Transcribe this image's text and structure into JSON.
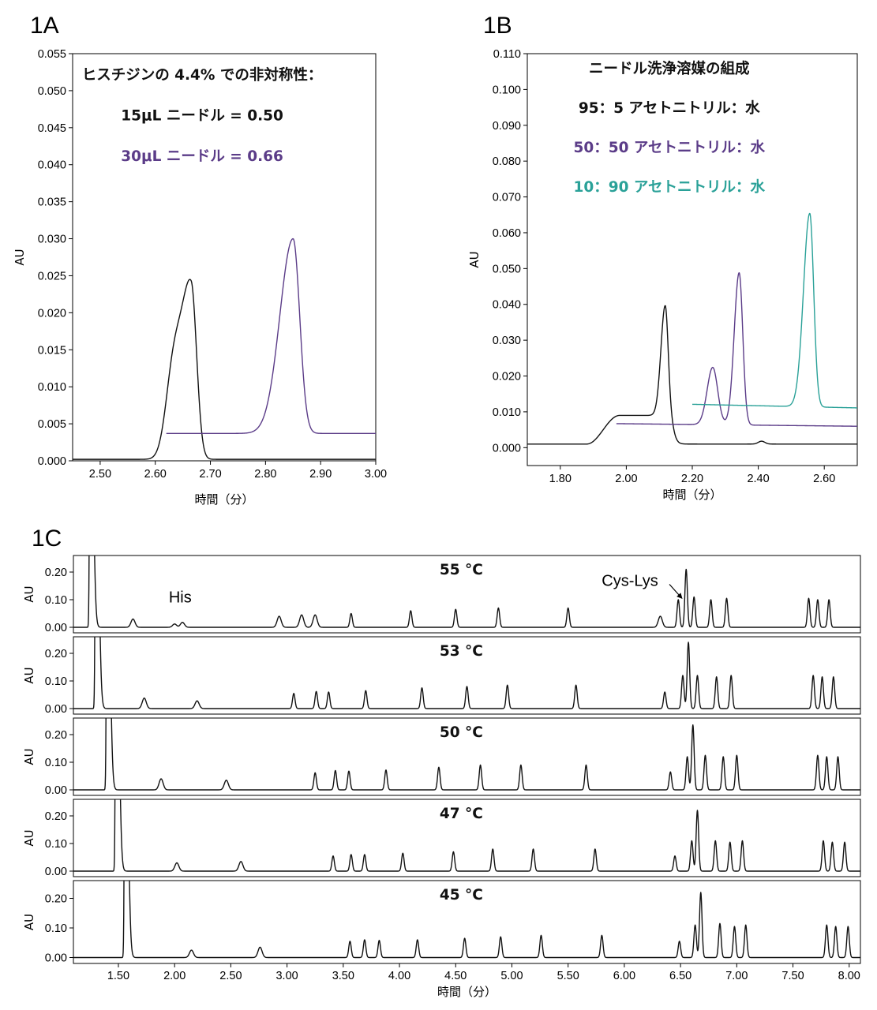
{
  "colors": {
    "black": "#111111",
    "purple": "#5b3c88",
    "teal": "#2aa198"
  },
  "chart_data": [
    {
      "id": "1A",
      "panel_label": "1A",
      "type": "line",
      "xlabel": "時間（分）",
      "ylabel": "AU",
      "xlim": [
        2.45,
        3.0
      ],
      "ylim": [
        0.0,
        0.055
      ],
      "xticks": [
        2.5,
        2.6,
        2.7,
        2.8,
        2.9,
        3.0
      ],
      "yticks": [
        0.0,
        0.005,
        0.01,
        0.015,
        0.02,
        0.025,
        0.03,
        0.035,
        0.04,
        0.045,
        0.05,
        0.055
      ],
      "x_decimals": 2,
      "y_decimals": 3,
      "annotations": [
        {
          "text": "ヒスチジンの 4.4% での非対称性：",
          "color": "#111111",
          "x": 2.685,
          "y": 0.0515
        },
        {
          "text": "15μL ニードル = 0.50",
          "color": "#111111",
          "x": 2.685,
          "y": 0.046
        },
        {
          "text": "30μL ニードル = 0.66",
          "color": "#5b3c88",
          "x": 2.685,
          "y": 0.0405
        }
      ],
      "series": [
        {
          "label": "15μL ニードル",
          "color": "#111111",
          "x_start": 2.45,
          "x_end": 3.0,
          "baseline": 0.0002,
          "peaks": [
            {
              "center": 2.665,
              "height": 0.0233,
              "width_left": 0.017,
              "width_right": 0.01
            },
            {
              "center": 2.633,
              "height": 0.0115,
              "width_left": 0.014,
              "width_right": 0.014
            }
          ]
        },
        {
          "label": "30μL ニードル",
          "color": "#5b3c88",
          "x_start": 2.62,
          "x_end": 3.0,
          "baseline": 0.0037,
          "peaks": [
            {
              "center": 2.85,
              "height": 0.0263,
              "width_left": 0.024,
              "width_right": 0.012
            }
          ]
        }
      ]
    },
    {
      "id": "1B",
      "panel_label": "1B",
      "type": "line",
      "xlabel": "時間（分）",
      "ylabel": "AU",
      "xlim": [
        1.7,
        2.7
      ],
      "ylim": [
        -0.005,
        0.11
      ],
      "xticks": [
        1.8,
        2.0,
        2.2,
        2.4,
        2.6
      ],
      "yticks": [
        0.0,
        0.01,
        0.02,
        0.03,
        0.04,
        0.05,
        0.06,
        0.07,
        0.08,
        0.09,
        0.1,
        0.11
      ],
      "x_decimals": 2,
      "y_decimals": 3,
      "annotations": [
        {
          "text": "ニードル洗浄溶媒の組成",
          "color": "#111111",
          "x": 2.13,
          "y": 0.1045
        },
        {
          "text": "95：5 アセトニトリル：水",
          "color": "#111111",
          "x": 2.13,
          "y": 0.0935
        },
        {
          "text": "50：50 アセトニトリル：水",
          "color": "#5b3c88",
          "x": 2.13,
          "y": 0.0825
        },
        {
          "text": "10：90 アセトニトリル：水",
          "color": "#2aa198",
          "x": 2.13,
          "y": 0.0715
        }
      ],
      "series": [
        {
          "label": "95：5 アセトニトリル：水",
          "color": "#111111",
          "x_start": 1.7,
          "x_end": 2.7,
          "baseline": 0.001,
          "step": {
            "start": 1.88,
            "end": 1.98,
            "height": 0.008,
            "drop_center": 2.143,
            "drop_width": 0.006
          },
          "peaks": [
            {
              "center": 2.118,
              "height": 0.0308,
              "width_left": 0.013,
              "width_right": 0.009
            },
            {
              "center": 2.41,
              "height": 0.0008,
              "width_left": 0.01,
              "width_right": 0.01
            }
          ]
        },
        {
          "label": "50：50 アセトニトリル：水",
          "color": "#5b3c88",
          "x_start": 1.97,
          "x_end": 2.7,
          "baseline": 0.0067,
          "slope": -0.001,
          "peaks": [
            {
              "center": 2.342,
              "height": 0.0425,
              "width_left": 0.015,
              "width_right": 0.011
            },
            {
              "center": 2.262,
              "height": 0.016,
              "width_left": 0.017,
              "width_right": 0.015
            }
          ]
        },
        {
          "label": "10：90 アセトニトリル：水",
          "color": "#2aa198",
          "x_start": 2.2,
          "x_end": 2.7,
          "baseline": 0.0121,
          "slope": -0.002,
          "peaks": [
            {
              "center": 2.556,
              "height": 0.054,
              "width_left": 0.019,
              "width_right": 0.012
            }
          ]
        }
      ]
    },
    {
      "id": "1C",
      "panel_label": "1C",
      "type": "line",
      "xlabel": "時間（分）",
      "ylabel": "AU",
      "xlim": [
        1.1,
        8.1
      ],
      "ylim": [
        -0.02,
        0.26
      ],
      "xticks": [
        1.5,
        2.0,
        2.5,
        3.0,
        3.5,
        4.0,
        4.5,
        5.0,
        5.5,
        6.0,
        6.5,
        7.0,
        7.5,
        8.0
      ],
      "yticks": [
        0.0,
        0.1,
        0.2
      ],
      "x_decimals": 2,
      "y_decimals": 2,
      "named_peaks": [
        {
          "text": "His",
          "x": 2.05,
          "y": 0.09,
          "panel": 0
        },
        {
          "text": "Cys-Lys",
          "x": 6.05,
          "y": 0.15,
          "panel": 0,
          "arrow_to_x": 6.55,
          "arrow_to_y": 0.13
        }
      ],
      "panels": [
        {
          "temp_label": "55 °C",
          "solvent_front": 1.25,
          "peaks": [
            [
              1.63,
              0.03
            ],
            [
              2.0,
              0.012
            ],
            [
              2.07,
              0.018
            ],
            [
              2.93,
              0.04
            ],
            [
              3.13,
              0.045
            ],
            [
              3.25,
              0.045
            ],
            [
              3.57,
              0.05
            ],
            [
              4.1,
              0.06
            ],
            [
              4.5,
              0.065
            ],
            [
              4.88,
              0.07
            ],
            [
              5.5,
              0.07
            ],
            [
              6.32,
              0.04
            ],
            [
              6.48,
              0.1
            ],
            [
              6.55,
              0.21
            ],
            [
              6.62,
              0.11
            ],
            [
              6.77,
              0.1
            ],
            [
              6.91,
              0.105
            ],
            [
              7.64,
              0.105
            ],
            [
              7.72,
              0.1
            ],
            [
              7.82,
              0.1
            ]
          ]
        },
        {
          "temp_label": "53 °C",
          "solvent_front": 1.3,
          "peaks": [
            [
              1.73,
              0.038
            ],
            [
              2.2,
              0.028
            ],
            [
              3.06,
              0.055
            ],
            [
              3.26,
              0.062
            ],
            [
              3.37,
              0.06
            ],
            [
              3.7,
              0.065
            ],
            [
              4.2,
              0.075
            ],
            [
              4.6,
              0.08
            ],
            [
              4.96,
              0.085
            ],
            [
              5.57,
              0.085
            ],
            [
              6.36,
              0.06
            ],
            [
              6.52,
              0.12
            ],
            [
              6.57,
              0.24
            ],
            [
              6.65,
              0.12
            ],
            [
              6.82,
              0.115
            ],
            [
              6.95,
              0.12
            ],
            [
              7.68,
              0.12
            ],
            [
              7.76,
              0.115
            ],
            [
              7.86,
              0.115
            ]
          ]
        },
        {
          "temp_label": "50 °C",
          "solvent_front": 1.4,
          "peaks": [
            [
              1.88,
              0.04
            ],
            [
              2.46,
              0.035
            ],
            [
              3.25,
              0.062
            ],
            [
              3.43,
              0.07
            ],
            [
              3.55,
              0.068
            ],
            [
              3.88,
              0.072
            ],
            [
              4.35,
              0.082
            ],
            [
              4.72,
              0.09
            ],
            [
              5.08,
              0.09
            ],
            [
              5.66,
              0.09
            ],
            [
              6.41,
              0.065
            ],
            [
              6.56,
              0.12
            ],
            [
              6.61,
              0.235
            ],
            [
              6.72,
              0.125
            ],
            [
              6.88,
              0.12
            ],
            [
              7.0,
              0.125
            ],
            [
              7.72,
              0.125
            ],
            [
              7.8,
              0.12
            ],
            [
              7.9,
              0.12
            ]
          ]
        },
        {
          "temp_label": "47 °C",
          "solvent_front": 1.48,
          "peaks": [
            [
              2.02,
              0.03
            ],
            [
              2.59,
              0.035
            ],
            [
              3.41,
              0.055
            ],
            [
              3.57,
              0.06
            ],
            [
              3.69,
              0.06
            ],
            [
              4.03,
              0.065
            ],
            [
              4.48,
              0.07
            ],
            [
              4.83,
              0.08
            ],
            [
              5.19,
              0.08
            ],
            [
              5.74,
              0.08
            ],
            [
              6.45,
              0.055
            ],
            [
              6.6,
              0.11
            ],
            [
              6.65,
              0.22
            ],
            [
              6.81,
              0.11
            ],
            [
              6.94,
              0.105
            ],
            [
              7.05,
              0.11
            ],
            [
              7.77,
              0.11
            ],
            [
              7.85,
              0.105
            ],
            [
              7.96,
              0.105
            ]
          ]
        },
        {
          "temp_label": "45 °C",
          "solvent_front": 1.56,
          "peaks": [
            [
              2.15,
              0.025
            ],
            [
              2.76,
              0.035
            ],
            [
              3.56,
              0.055
            ],
            [
              3.69,
              0.06
            ],
            [
              3.82,
              0.058
            ],
            [
              4.16,
              0.06
            ],
            [
              4.58,
              0.065
            ],
            [
              4.9,
              0.07
            ],
            [
              5.26,
              0.075
            ],
            [
              5.8,
              0.075
            ],
            [
              6.49,
              0.055
            ],
            [
              6.63,
              0.11
            ],
            [
              6.68,
              0.22
            ],
            [
              6.85,
              0.115
            ],
            [
              6.98,
              0.105
            ],
            [
              7.08,
              0.11
            ],
            [
              7.8,
              0.11
            ],
            [
              7.88,
              0.105
            ],
            [
              7.99,
              0.105
            ]
          ]
        }
      ]
    }
  ]
}
